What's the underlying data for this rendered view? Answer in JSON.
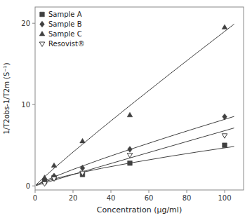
{
  "chart_data": {
    "type": "scatter",
    "x_label": "Concentration (μg/ml)",
    "y_label": "1/T2obs-1/T2m (S⁻¹)",
    "xlim": [
      0,
      110
    ],
    "ylim": [
      -0.5,
      22
    ],
    "xticks": [
      0,
      20,
      40,
      60,
      80,
      100
    ],
    "yticks": [
      0,
      10,
      20
    ],
    "color": "#404040",
    "legend": "upper left",
    "series": [
      {
        "name": "Sample A",
        "marker": "square",
        "x": [
          5,
          10,
          25,
          50,
          100
        ],
        "values": [
          0.5,
          1.0,
          1.4,
          2.8,
          5.0
        ],
        "fit": {
          "type": "line",
          "x": [
            0.5,
            2,
            5,
            10,
            20,
            35,
            50,
            70,
            85,
            105
          ],
          "values": [
            0.0946,
            0.263,
            0.515,
            0.859,
            1.43,
            2.16,
            2.808,
            3.597,
            4.15,
            4.848
          ]
        }
      },
      {
        "name": "Sample B",
        "marker": "diamond",
        "x": [
          5,
          10,
          25,
          50,
          100
        ],
        "values": [
          0.6,
          1.2,
          2.2,
          4.5,
          8.5
        ],
        "fit": {
          "type": "line",
          "x": [
            0.5,
            2,
            5,
            10,
            20,
            35,
            50,
            70,
            85,
            105
          ],
          "values": [
            0.0821,
            0.274,
            0.607,
            1.108,
            2.023,
            3.289,
            4.483,
            6.005,
            7.108,
            8.54
          ]
        }
      },
      {
        "name": "Sample C",
        "marker": "triangle-up",
        "x": [
          5,
          10,
          25,
          50,
          100
        ],
        "values": [
          1.0,
          2.5,
          5.5,
          8.7,
          19.5
        ],
        "fit": {
          "type": "line",
          "x": [
            0.5,
            2,
            5,
            10,
            20,
            35,
            50,
            70,
            85,
            105
          ],
          "values": [
            0.128,
            0.472,
            1.122,
            2.16,
            4.156,
            7.05,
            9.873,
            13.566,
            16.296,
            19.895
          ]
        }
      },
      {
        "name": "Resovist®",
        "marker": "triangle-down-open",
        "x": [
          5,
          10,
          25,
          50,
          100
        ],
        "values": [
          0.3,
          0.9,
          1.6,
          3.8,
          6.2
        ],
        "fit": {
          "type": "line",
          "x": [
            0.5,
            2,
            5,
            10,
            20,
            35,
            50,
            70,
            85,
            105
          ],
          "values": [
            0.0371,
            0.145,
            0.357,
            0.705,
            1.394,
            2.417,
            3.433,
            4.779,
            5.785,
            7.121
          ]
        }
      }
    ]
  }
}
